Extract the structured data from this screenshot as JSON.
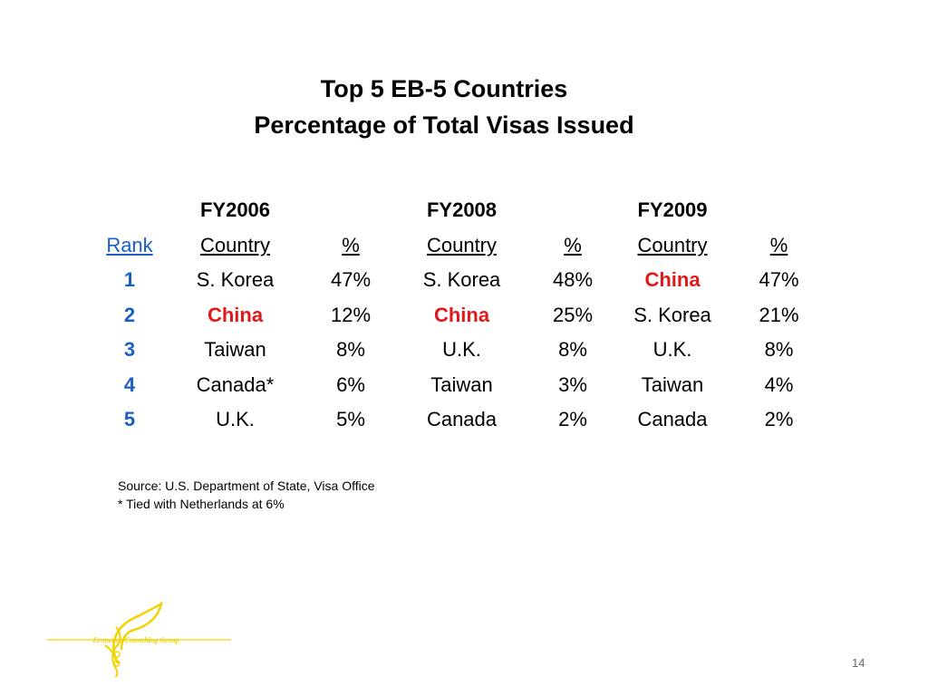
{
  "slide": {
    "title_line1": "Top 5 EB-5 Countries",
    "title_line2": "Percentage of Total Visas Issued",
    "page_number": "14"
  },
  "table": {
    "years": [
      "FY2006",
      "FY2008",
      "FY2009"
    ],
    "headers": {
      "rank": "Rank",
      "country": "Country",
      "percent": "%"
    },
    "rows": [
      {
        "rank": "1",
        "cells": [
          [
            "S. Korea",
            "47%"
          ],
          [
            "S. Korea",
            "48%"
          ],
          [
            "China",
            "47%"
          ]
        ]
      },
      {
        "rank": "2",
        "cells": [
          [
            "China",
            "12%"
          ],
          [
            "China",
            "25%"
          ],
          [
            "S. Korea",
            "21%"
          ]
        ]
      },
      {
        "rank": "3",
        "cells": [
          [
            "Taiwan",
            "8%"
          ],
          [
            "U.K.",
            "8%"
          ],
          [
            "U.K.",
            "8%"
          ]
        ]
      },
      {
        "rank": "4",
        "cells": [
          [
            "Canada*",
            "6%"
          ],
          [
            "Taiwan",
            "3%"
          ],
          [
            "Taiwan",
            "4%"
          ]
        ]
      },
      {
        "rank": "5",
        "cells": [
          [
            "U.K.",
            "5%"
          ],
          [
            "Canada",
            "2%"
          ],
          [
            "Canada",
            "2%"
          ]
        ]
      }
    ],
    "highlight_country": "China"
  },
  "notes": {
    "source": "Source: U.S. Department of State, Visa Office",
    "footnote": "* Tied with Netherlands at 6%"
  },
  "logo": {
    "text": "Economic Consulting Group",
    "icon": "plant-sprout-logo"
  },
  "colors": {
    "rank_blue": "#1a5fc4",
    "highlight_red": "#e0191b",
    "logo_yellow": "#f2d200"
  }
}
